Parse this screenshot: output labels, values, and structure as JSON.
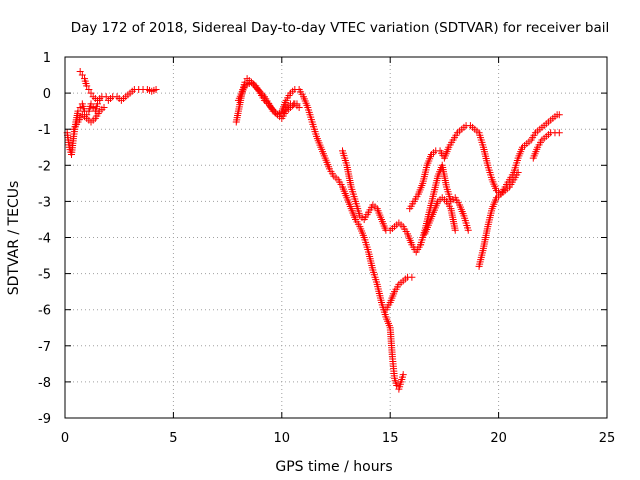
{
  "chart_data": {
    "type": "scatter",
    "title": "Day 172 of 2018, Sidereal Day-to-day VTEC variation (SDTVAR) for receiver bail",
    "xlabel": "GPS time / hours",
    "ylabel": "SDTVAR / TECUs",
    "xlim": [
      0,
      25
    ],
    "ylim": [
      -9,
      1
    ],
    "xticks": [
      "0",
      "5",
      "10",
      "15",
      "20",
      "25"
    ],
    "yticks": [
      "1",
      "0",
      "-1",
      "-2",
      "-3",
      "-4",
      "-5",
      "-6",
      "-7",
      "-8",
      "-9"
    ],
    "grid": true,
    "marker": "plus",
    "color": "#ff0000",
    "segments": [
      [
        [
          0.1,
          -1.1
        ],
        [
          0.2,
          -1.5
        ],
        [
          0.3,
          -1.7
        ],
        [
          0.4,
          -1.2
        ],
        [
          0.5,
          -0.8
        ],
        [
          0.6,
          -0.5
        ],
        [
          0.7,
          -0.4
        ],
        [
          0.8,
          -0.3
        ],
        [
          0.9,
          -0.5
        ],
        [
          1.0,
          -0.6
        ],
        [
          1.1,
          -0.5
        ],
        [
          1.2,
          -0.3
        ],
        [
          1.3,
          -0.4
        ],
        [
          1.4,
          -0.5
        ],
        [
          1.5,
          -0.3
        ],
        [
          1.6,
          -0.2
        ]
      ],
      [
        [
          0.7,
          0.6
        ],
        [
          0.8,
          0.5
        ],
        [
          0.9,
          0.4
        ],
        [
          1.0,
          0.2
        ],
        [
          1.1,
          0.1
        ],
        [
          1.2,
          0.0
        ],
        [
          1.3,
          -0.1
        ],
        [
          1.5,
          -0.2
        ],
        [
          1.7,
          -0.1
        ],
        [
          1.9,
          -0.1
        ],
        [
          2.0,
          -0.2
        ],
        [
          2.2,
          -0.1
        ],
        [
          2.4,
          -0.1
        ],
        [
          2.6,
          -0.2
        ],
        [
          2.8,
          -0.1
        ],
        [
          3.0,
          0.0
        ],
        [
          3.2,
          0.1
        ],
        [
          3.4,
          0.1
        ],
        [
          3.6,
          0.1
        ],
        [
          3.8,
          0.1
        ],
        [
          4.0,
          0.05
        ],
        [
          4.2,
          0.1
        ]
      ],
      [
        [
          0.4,
          -1.0
        ],
        [
          0.6,
          -0.8
        ],
        [
          0.8,
          -0.6
        ],
        [
          1.0,
          -0.7
        ],
        [
          1.2,
          -0.8
        ],
        [
          1.4,
          -0.7
        ],
        [
          1.6,
          -0.5
        ],
        [
          1.8,
          -0.4
        ]
      ],
      [
        [
          7.9,
          -0.8
        ],
        [
          8.0,
          -0.5
        ],
        [
          8.1,
          -0.2
        ],
        [
          8.2,
          0.1
        ],
        [
          8.3,
          0.3
        ],
        [
          8.4,
          0.4
        ],
        [
          8.6,
          0.3
        ],
        [
          8.8,
          0.2
        ],
        [
          9.0,
          0.0
        ],
        [
          9.2,
          -0.2
        ],
        [
          9.4,
          -0.3
        ],
        [
          9.6,
          -0.5
        ],
        [
          9.8,
          -0.6
        ],
        [
          10.0,
          -0.7
        ],
        [
          10.2,
          -0.5
        ],
        [
          10.4,
          -0.4
        ],
        [
          10.6,
          -0.3
        ],
        [
          10.8,
          -0.4
        ]
      ],
      [
        [
          8.0,
          -0.2
        ],
        [
          8.3,
          0.2
        ],
        [
          8.6,
          0.3
        ],
        [
          8.9,
          0.1
        ],
        [
          9.2,
          -0.1
        ],
        [
          9.5,
          -0.4
        ],
        [
          9.8,
          -0.6
        ],
        [
          10.1,
          -0.5
        ],
        [
          10.4,
          -0.3
        ],
        [
          10.7,
          -0.3
        ]
      ],
      [
        [
          10.0,
          -0.5
        ],
        [
          10.2,
          -0.2
        ],
        [
          10.4,
          0.0
        ],
        [
          10.6,
          0.1
        ],
        [
          10.8,
          0.1
        ],
        [
          11.0,
          -0.1
        ],
        [
          11.2,
          -0.4
        ],
        [
          11.4,
          -0.8
        ],
        [
          11.6,
          -1.2
        ],
        [
          11.8,
          -1.5
        ],
        [
          12.0,
          -1.8
        ],
        [
          12.2,
          -2.1
        ],
        [
          12.4,
          -2.3
        ],
        [
          12.6,
          -2.4
        ],
        [
          12.8,
          -2.6
        ],
        [
          13.0,
          -2.9
        ],
        [
          13.2,
          -3.2
        ],
        [
          13.4,
          -3.5
        ],
        [
          13.6,
          -3.7
        ],
        [
          13.8,
          -4.0
        ],
        [
          14.0,
          -4.4
        ],
        [
          14.2,
          -4.9
        ],
        [
          14.4,
          -5.3
        ],
        [
          14.6,
          -5.8
        ],
        [
          14.8,
          -6.2
        ],
        [
          15.0,
          -6.5
        ],
        [
          15.1,
          -7.3
        ],
        [
          15.2,
          -7.9
        ],
        [
          15.3,
          -8.1
        ],
        [
          15.4,
          -8.2
        ],
        [
          15.5,
          -8.0
        ],
        [
          15.6,
          -7.8
        ]
      ],
      [
        [
          12.8,
          -1.6
        ],
        [
          13.0,
          -2.0
        ],
        [
          13.2,
          -2.6
        ],
        [
          13.4,
          -3.0
        ],
        [
          13.6,
          -3.4
        ],
        [
          13.8,
          -3.5
        ],
        [
          14.0,
          -3.3
        ],
        [
          14.2,
          -3.1
        ],
        [
          14.4,
          -3.2
        ],
        [
          14.6,
          -3.5
        ],
        [
          14.8,
          -3.8
        ],
        [
          15.0,
          -3.8
        ],
        [
          15.2,
          -3.7
        ],
        [
          15.4,
          -3.6
        ],
        [
          15.6,
          -3.7
        ],
        [
          15.8,
          -3.9
        ],
        [
          16.0,
          -4.2
        ],
        [
          16.2,
          -4.4
        ],
        [
          16.4,
          -4.2
        ]
      ],
      [
        [
          14.8,
          -6.0
        ],
        [
          15.0,
          -5.8
        ],
        [
          15.2,
          -5.5
        ],
        [
          15.4,
          -5.3
        ],
        [
          15.6,
          -5.2
        ],
        [
          15.8,
          -5.1
        ],
        [
          16.0,
          -5.1
        ]
      ],
      [
        [
          15.9,
          -3.2
        ],
        [
          16.1,
          -3.0
        ],
        [
          16.3,
          -2.8
        ],
        [
          16.5,
          -2.5
        ],
        [
          16.7,
          -2.0
        ],
        [
          16.9,
          -1.7
        ],
        [
          17.1,
          -1.6
        ],
        [
          17.3,
          -1.6
        ],
        [
          17.5,
          -1.8
        ],
        [
          17.7,
          -1.5
        ],
        [
          17.9,
          -1.3
        ],
        [
          18.1,
          -1.1
        ],
        [
          18.3,
          -1.0
        ],
        [
          18.5,
          -0.9
        ],
        [
          18.7,
          -0.9
        ],
        [
          18.9,
          -1.0
        ],
        [
          19.1,
          -1.1
        ],
        [
          19.3,
          -1.5
        ],
        [
          19.5,
          -2.0
        ],
        [
          19.7,
          -2.4
        ],
        [
          19.9,
          -2.7
        ],
        [
          20.1,
          -2.8
        ],
        [
          20.3,
          -2.6
        ],
        [
          20.5,
          -2.4
        ],
        [
          20.7,
          -2.2
        ],
        [
          20.9,
          -1.8
        ],
        [
          21.1,
          -1.5
        ],
        [
          21.3,
          -1.4
        ],
        [
          21.5,
          -1.3
        ],
        [
          21.7,
          -1.1
        ],
        [
          21.9,
          -1.0
        ],
        [
          22.1,
          -0.9
        ],
        [
          22.3,
          -0.8
        ],
        [
          22.5,
          -0.7
        ],
        [
          22.7,
          -0.6
        ],
        [
          22.8,
          -0.6
        ]
      ],
      [
        [
          16.4,
          -4.2
        ],
        [
          16.6,
          -3.8
        ],
        [
          16.8,
          -3.3
        ],
        [
          17.0,
          -2.8
        ],
        [
          17.2,
          -2.3
        ],
        [
          17.4,
          -2.0
        ],
        [
          17.6,
          -2.6
        ],
        [
          17.8,
          -3.0
        ],
        [
          18.0,
          -2.9
        ],
        [
          18.2,
          -3.1
        ],
        [
          18.4,
          -3.4
        ],
        [
          18.6,
          -3.8
        ]
      ],
      [
        [
          16.6,
          -3.9
        ],
        [
          16.8,
          -3.6
        ],
        [
          17.0,
          -3.3
        ],
        [
          17.2,
          -3.0
        ],
        [
          17.4,
          -2.9
        ],
        [
          17.6,
          -3.0
        ],
        [
          17.8,
          -3.2
        ],
        [
          17.9,
          -3.5
        ],
        [
          18.0,
          -3.8
        ]
      ],
      [
        [
          19.1,
          -4.8
        ],
        [
          19.3,
          -4.3
        ],
        [
          19.5,
          -3.7
        ],
        [
          19.7,
          -3.2
        ],
        [
          19.9,
          -2.9
        ],
        [
          20.1,
          -2.8
        ],
        [
          20.3,
          -2.7
        ],
        [
          20.5,
          -2.6
        ],
        [
          20.7,
          -2.4
        ],
        [
          20.9,
          -2.2
        ]
      ],
      [
        [
          21.6,
          -1.8
        ],
        [
          21.8,
          -1.5
        ],
        [
          22.0,
          -1.3
        ],
        [
          22.2,
          -1.2
        ],
        [
          22.4,
          -1.1
        ],
        [
          22.6,
          -1.1
        ],
        [
          22.8,
          -1.1
        ]
      ]
    ]
  }
}
